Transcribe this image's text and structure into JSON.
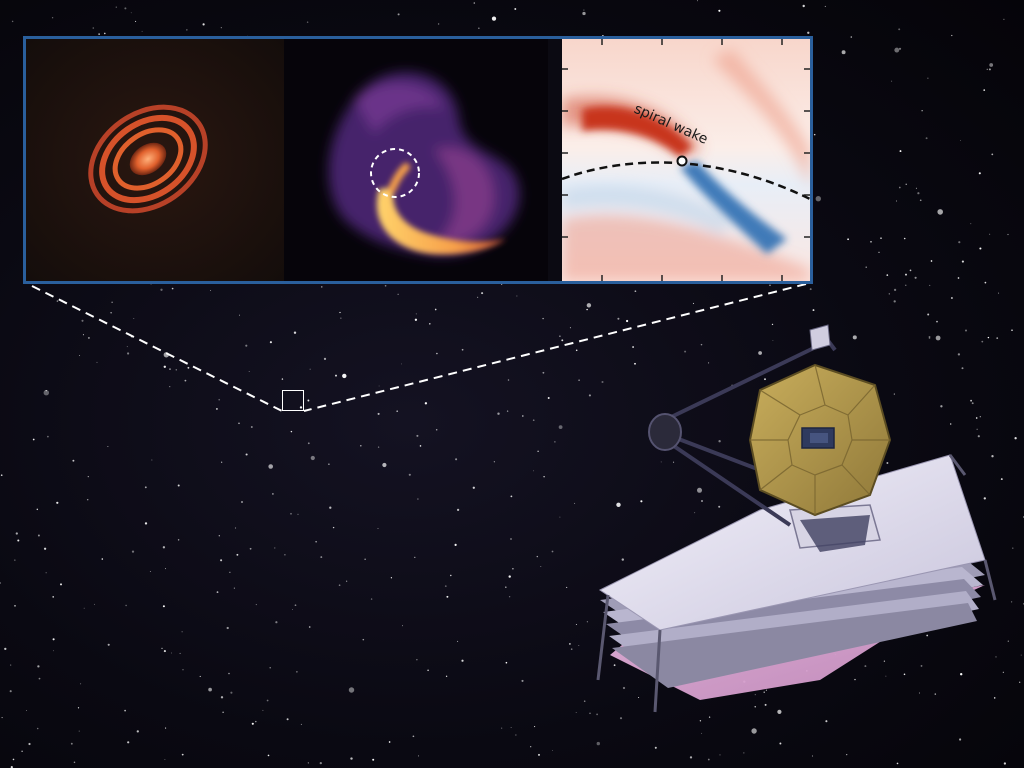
{
  "annotation": {
    "spiral_wake_label": "spiral wake"
  },
  "colors": {
    "sky_background": "#07060c",
    "inset_border": "#2a5f9c",
    "protoplanetary_ring": "#d6522a",
    "dust_emission": "#f7a04a",
    "density_excess": "#c8341f",
    "density_deficit": "#2c6fb3",
    "telescope_mirror": "#b59a4d",
    "sunshield": "#e6e2f2",
    "sunshield_underside": "#d9a6d4"
  },
  "icons": {
    "telescope": "jwst-telescope-icon",
    "zoom_indicator": "zoom-box-icon"
  }
}
